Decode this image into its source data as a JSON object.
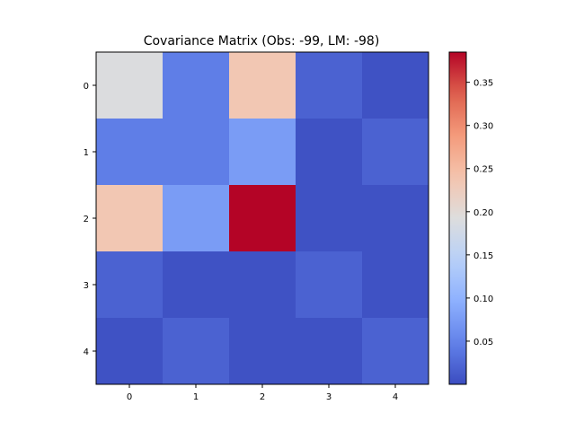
{
  "chart_data": {
    "type": "heatmap",
    "title": "Covariance Matrix (Obs: -99, LM: -98)",
    "xlabel": "",
    "ylabel": "",
    "colormap": "coolwarm",
    "x_categories": [
      "0",
      "1",
      "2",
      "3",
      "4"
    ],
    "y_categories": [
      "0",
      "1",
      "2",
      "3",
      "4"
    ],
    "values": [
      [
        0.19,
        0.045,
        0.235,
        0.02,
        0.005
      ],
      [
        0.045,
        0.045,
        0.075,
        0.005,
        0.02
      ],
      [
        0.235,
        0.075,
        0.385,
        0.005,
        0.005
      ],
      [
        0.02,
        0.005,
        0.005,
        0.02,
        0.005
      ],
      [
        0.005,
        0.02,
        0.005,
        0.005,
        0.02
      ]
    ],
    "color_range": [
      0.0,
      0.385
    ],
    "colorbar": {
      "ticks": [
        0.05,
        0.1,
        0.15,
        0.2,
        0.25,
        0.3,
        0.35
      ],
      "tick_labels": [
        "0.05",
        "0.10",
        "0.15",
        "0.20",
        "0.25",
        "0.30",
        "0.35"
      ],
      "placement": "right"
    },
    "grid": false
  }
}
